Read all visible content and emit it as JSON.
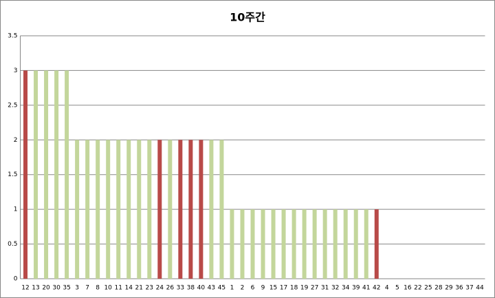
{
  "chart_data": {
    "type": "bar",
    "title": "10주간",
    "categories": [
      "12",
      "13",
      "20",
      "30",
      "35",
      "3",
      "7",
      "8",
      "10",
      "11",
      "14",
      "21",
      "23",
      "24",
      "26",
      "33",
      "38",
      "40",
      "43",
      "45",
      "1",
      "2",
      "6",
      "9",
      "15",
      "17",
      "18",
      "19",
      "27",
      "31",
      "32",
      "34",
      "39",
      "41",
      "42",
      "4",
      "5",
      "16",
      "22",
      "25",
      "28",
      "29",
      "36",
      "37",
      "44"
    ],
    "values": [
      3,
      3,
      3,
      3,
      3,
      2,
      2,
      2,
      2,
      2,
      2,
      2,
      2,
      2,
      2,
      2,
      2,
      2,
      2,
      2,
      1,
      1,
      1,
      1,
      1,
      1,
      1,
      1,
      1,
      1,
      1,
      1,
      1,
      1,
      1,
      0,
      0,
      0,
      0,
      0,
      0,
      0,
      0,
      0,
      0
    ],
    "colors": [
      "#b84a48",
      "#c3d69b",
      "#c3d69b",
      "#c3d69b",
      "#c3d69b",
      "#c3d69b",
      "#c3d69b",
      "#c3d69b",
      "#c3d69b",
      "#c3d69b",
      "#c3d69b",
      "#c3d69b",
      "#c3d69b",
      "#b84a48",
      "#c3d69b",
      "#b84a48",
      "#b84a48",
      "#b84a48",
      "#c3d69b",
      "#c3d69b",
      "#c3d69b",
      "#c3d69b",
      "#c3d69b",
      "#c3d69b",
      "#c3d69b",
      "#c3d69b",
      "#c3d69b",
      "#c3d69b",
      "#c3d69b",
      "#c3d69b",
      "#c3d69b",
      "#c3d69b",
      "#c3d69b",
      "#c3d69b",
      "#b84a48",
      "#c3d69b",
      "#c3d69b",
      "#c3d69b",
      "#c3d69b",
      "#c3d69b",
      "#c3d69b",
      "#c3d69b",
      "#c3d69b",
      "#c3d69b",
      "#c3d69b"
    ],
    "ylim": [
      0,
      3.5
    ],
    "yticks": [
      0,
      0.5,
      1,
      1.5,
      2,
      2.5,
      3,
      3.5
    ],
    "grid": true
  }
}
